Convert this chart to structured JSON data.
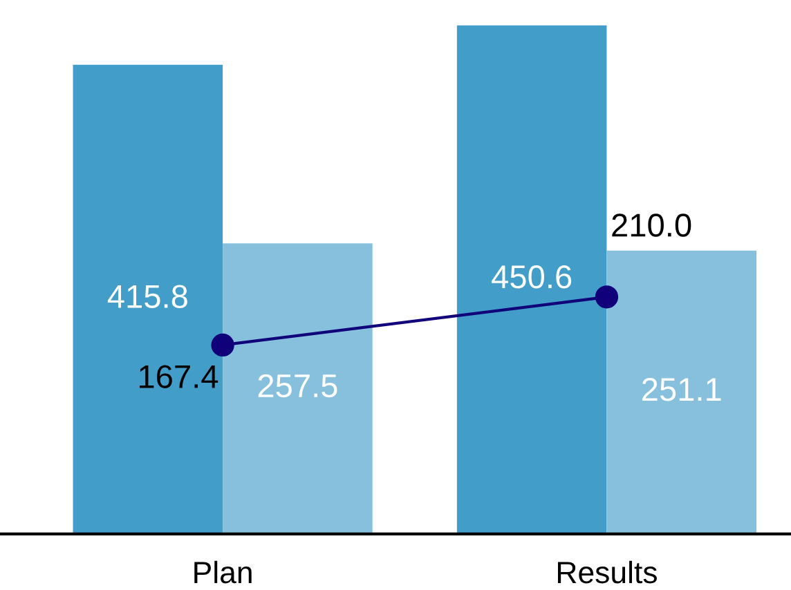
{
  "chart_data": {
    "type": "bar",
    "categories": [
      "Plan",
      "Results"
    ],
    "series": [
      {
        "color": "#429ec9",
        "values": [
          415.8,
          450.6
        ]
      },
      {
        "color": "#87c0dc",
        "values": [
          257.5,
          251.1
        ]
      },
      {
        "type": "line",
        "color": "#10007a",
        "values": [
          167.4,
          210.0
        ],
        "value_labels": [
          "167.4",
          "210.0"
        ],
        "marker": "circle",
        "line_style": "solid"
      }
    ],
    "data_labels": true,
    "grid": false,
    "legend": false
  }
}
